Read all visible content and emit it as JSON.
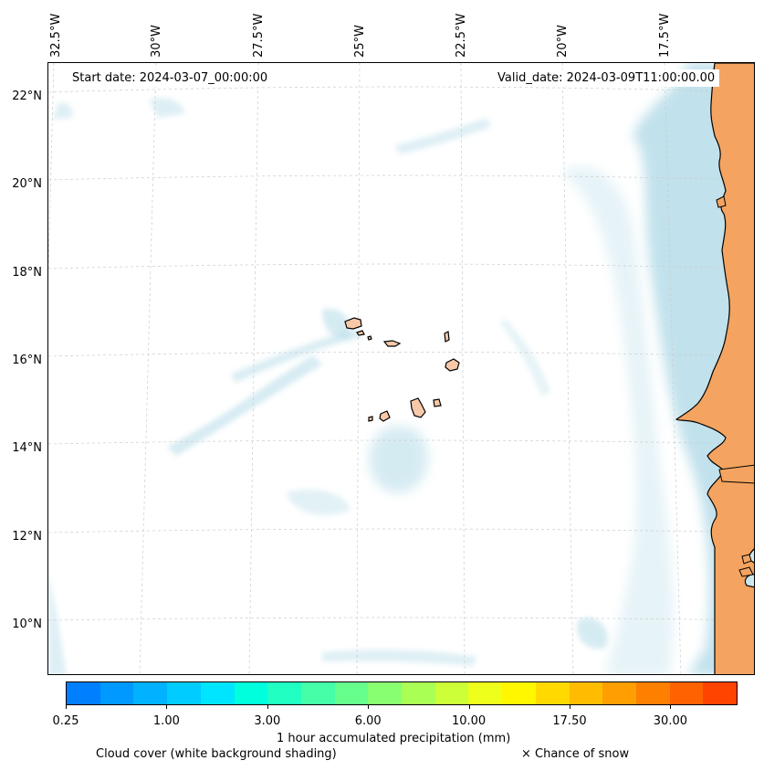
{
  "map": {
    "start_date": "Start date: 2024-03-07_00:00:00",
    "valid_date": "Valid_date: 2024-03-09T11:00:00.00",
    "lon_labels": [
      "32.5°W",
      "30°W",
      "27.5°W",
      "25°W",
      "22.5°W",
      "20°W",
      "17.5°W"
    ],
    "lat_labels": [
      "22°N",
      "20°N",
      "18°N",
      "16°N",
      "14°N",
      "12°N",
      "10°N"
    ],
    "land_color": "#f4a460",
    "cloud_color": "#add8e6",
    "gridline_color": "#cccccc",
    "regions": [
      "African coast",
      "Cape Verde islands"
    ]
  },
  "colorbar": {
    "colors": [
      "#007fff",
      "#0099ff",
      "#00b2ff",
      "#00ccff",
      "#00e5ff",
      "#00ffdd",
      "#21ffc3",
      "#44ffa7",
      "#66ff8c",
      "#88ff70",
      "#aaff55",
      "#ccff38",
      "#eeff1c",
      "#fff700",
      "#ffd900",
      "#ffbc00",
      "#ff9e00",
      "#ff8000",
      "#ff6200",
      "#ff4400"
    ],
    "ticks": [
      "0.25",
      "1.00",
      "3.00",
      "6.00",
      "10.00",
      "17.50",
      "30.00"
    ],
    "label": "1 hour accumulated precipitation (mm)"
  },
  "legend": {
    "cloud_cover": "Cloud cover (white background shading)",
    "snow": "× Chance of snow"
  }
}
